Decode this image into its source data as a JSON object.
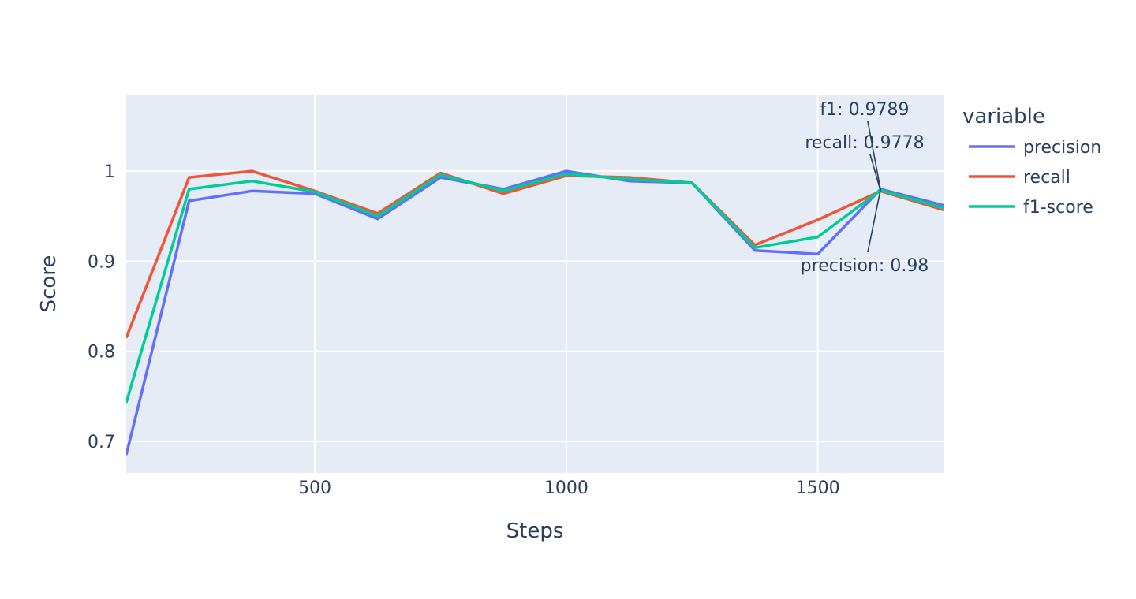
{
  "chart_data": {
    "type": "line",
    "xlabel": "Steps",
    "ylabel": "Score",
    "xlim": [
      125,
      1750
    ],
    "ylim": [
      0.665,
      1.085
    ],
    "x_ticks": [
      500,
      1000,
      1500
    ],
    "x_tick_labels": [
      "500",
      "1000",
      "1500"
    ],
    "y_ticks": [
      0.7,
      0.8,
      0.9,
      1.0
    ],
    "y_tick_labels": [
      "0.7",
      "0.8",
      "0.9",
      "1"
    ],
    "grid": true,
    "legend": {
      "title": "variable",
      "placement": "right"
    },
    "x": [
      125,
      250,
      375,
      500,
      625,
      750,
      875,
      1000,
      1125,
      1250,
      1375,
      1500,
      1625,
      1750
    ],
    "series": [
      {
        "name": "precision",
        "color": "#636efa",
        "values": [
          0.685,
          0.967,
          0.978,
          0.975,
          0.947,
          0.993,
          0.98,
          1.0,
          0.989,
          0.987,
          0.912,
          0.908,
          0.98,
          0.962
        ]
      },
      {
        "name": "recall",
        "color": "#ef553b",
        "values": [
          0.815,
          0.993,
          1.0,
          0.978,
          0.953,
          0.998,
          0.975,
          0.995,
          0.993,
          0.987,
          0.918,
          0.946,
          0.9778,
          0.957
        ]
      },
      {
        "name": "f1-score",
        "color": "#00cc96",
        "values": [
          0.743,
          0.98,
          0.989,
          0.977,
          0.95,
          0.996,
          0.978,
          0.997,
          0.991,
          0.987,
          0.915,
          0.927,
          0.9789,
          0.959
        ]
      }
    ],
    "annotations": [
      {
        "text": "f1: 0.9789",
        "x": 1625,
        "y": 0.9789
      },
      {
        "text": "recall: 0.9778",
        "x": 1625,
        "y": 0.9778
      },
      {
        "text": "precision: 0.98",
        "x": 1625,
        "y": 0.98
      }
    ]
  }
}
